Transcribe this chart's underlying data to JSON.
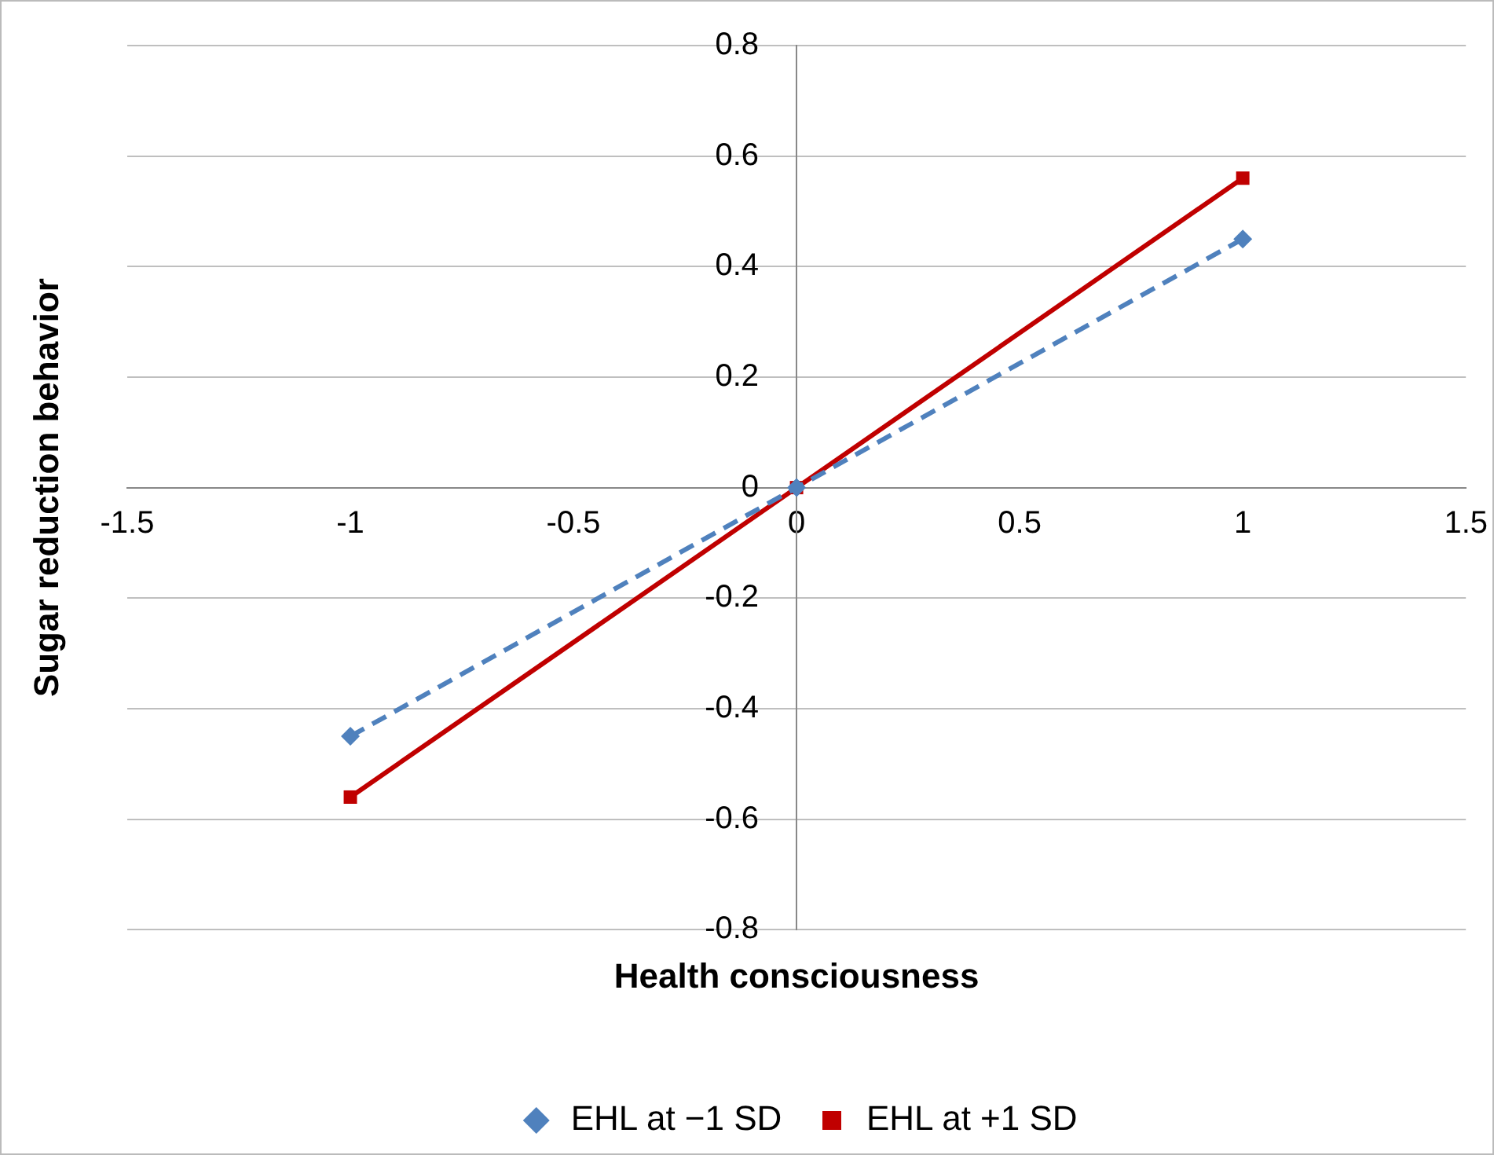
{
  "chart_data": {
    "type": "line",
    "xlabel": "Health consciousness",
    "ylabel": "Sugar reduction behavior",
    "x": [
      -1,
      0,
      1
    ],
    "series": [
      {
        "name": "EHL at −1 SD",
        "color": "#4f81bd",
        "values": [
          -0.45,
          0,
          0.45
        ],
        "marker": "diamond",
        "line_style": "dashed"
      },
      {
        "name": "EHL at +1 SD",
        "color": "#c00000",
        "values": [
          -0.56,
          0,
          0.56
        ],
        "marker": "square",
        "line_style": "solid"
      }
    ],
    "xlim": [
      -1.5,
      1.5
    ],
    "xticks": [
      -1.5,
      -1,
      -0.5,
      0,
      0.5,
      1,
      1.5
    ],
    "ylim": [
      -0.8,
      0.8
    ],
    "yticks": [
      -0.8,
      -0.6,
      -0.4,
      -0.2,
      0,
      0.2,
      0.4,
      0.6,
      0.8
    ],
    "grid": "y",
    "legend": "bottom"
  }
}
